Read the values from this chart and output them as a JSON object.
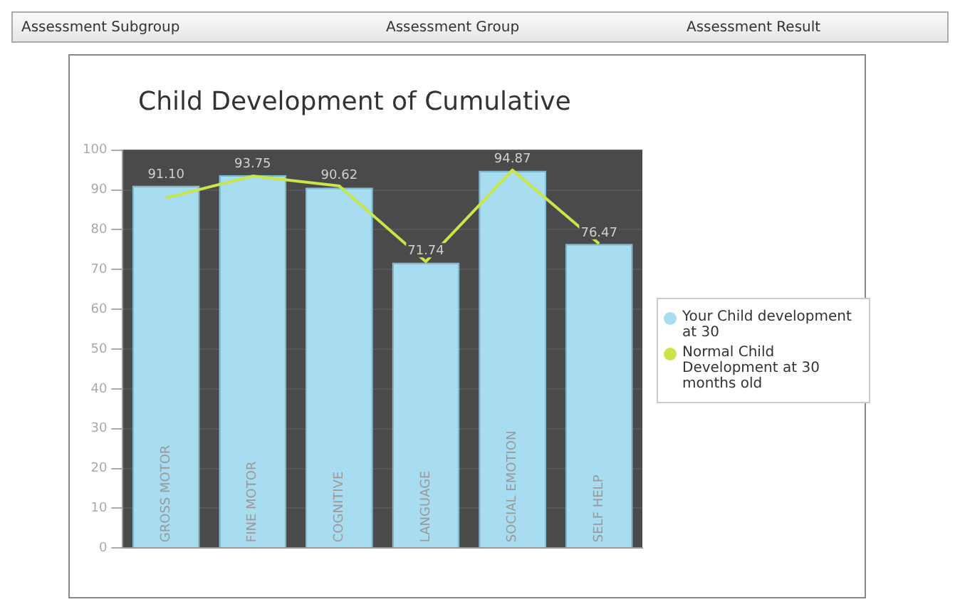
{
  "chart_data": {
    "type": "bar",
    "title": "Child Development of Cumulative",
    "annotations": [
      "Assessment Subgroup",
      "Assessment Group",
      "Assessment Result"
    ],
    "categories": [
      "GROSS MOTOR",
      "FINE MOTOR",
      "COGNITIVE",
      "LANGUAGE",
      "SOCIAL EMOTION",
      "SELF HELP"
    ],
    "series": [
      {
        "name": "Your Child development at 30",
        "color": "#a8dcf0",
        "values": [
          91.1,
          93.75,
          90.62,
          71.74,
          94.87,
          76.47
        ],
        "value_labels": [
          "91.10",
          "93.75",
          "90.62",
          "71.74",
          "94.87",
          "76.47"
        ]
      },
      {
        "name": "Normal Child Development at 30 months old",
        "type": "line",
        "color": "#c8e64a",
        "values": [
          88,
          93.5,
          91,
          72,
          95,
          76.5
        ]
      }
    ],
    "ylim": [
      0,
      100
    ],
    "yticks": [
      0,
      10,
      20,
      30,
      40,
      50,
      60,
      70,
      80,
      90,
      100
    ],
    "grid": "y",
    "legend": "right",
    "marker": "none"
  }
}
